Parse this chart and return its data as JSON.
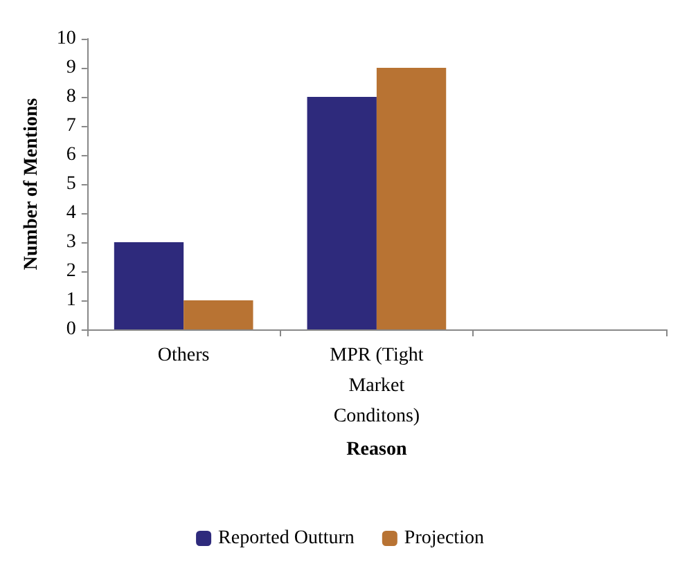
{
  "chart_data": {
    "type": "bar",
    "xlabel": "Reason",
    "ylabel": "Number of Mentions",
    "categories": [
      "Others",
      "MPR (Tight Market Conditons)",
      null
    ],
    "series": [
      {
        "name": "Reported Outturn",
        "color": "#2e2a7c",
        "values": [
          3,
          8,
          null
        ]
      },
      {
        "name": "Projection",
        "color": "#b87333",
        "values": [
          1,
          9,
          null
        ]
      }
    ],
    "ylim": [
      0,
      10
    ],
    "yticks": [
      0,
      1,
      2,
      3,
      4,
      5,
      6,
      7,
      8,
      9,
      10
    ],
    "grid": false,
    "legend": "bottom"
  }
}
